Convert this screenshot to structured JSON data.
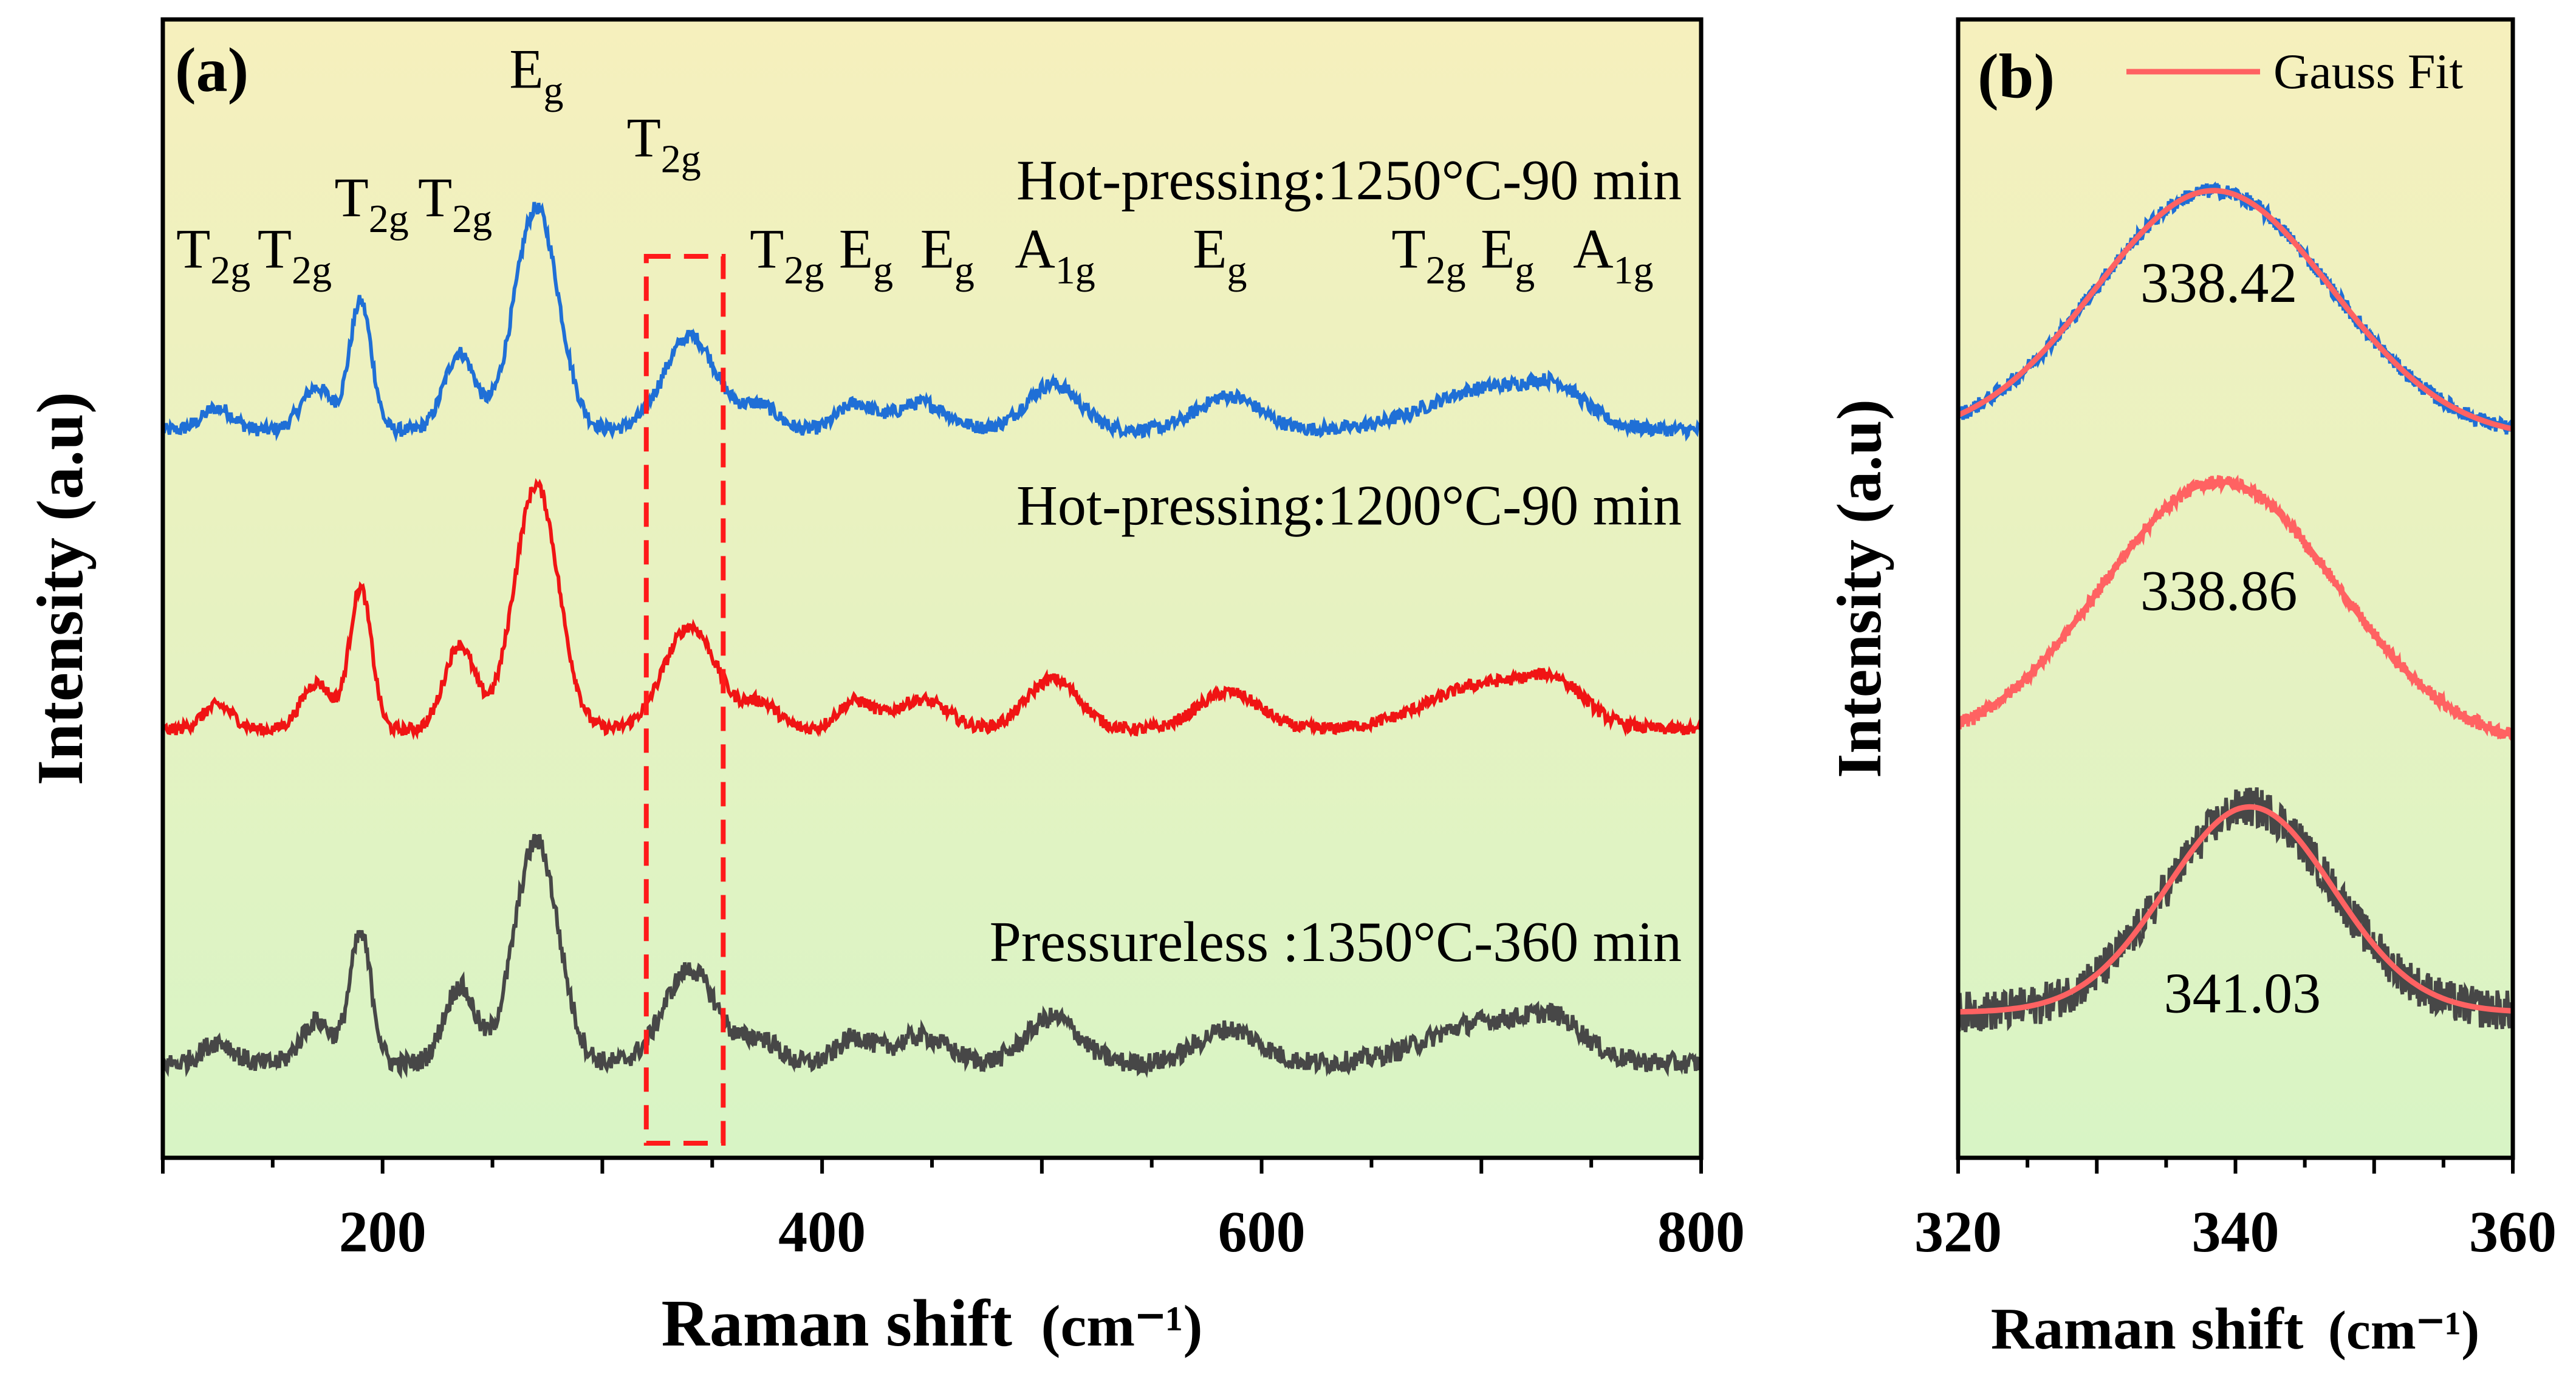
{
  "chart_data": [
    {
      "panel": "a",
      "type": "line",
      "panel_label": "(a)",
      "xlabel": "Raman shift",
      "xlabel_unit": "(cm⁻¹)",
      "ylabel": "Intensity (a.u)",
      "xlim": [
        100,
        800
      ],
      "xticks": [
        200,
        400,
        600,
        800
      ],
      "y_ticks_shown": false,
      "background_gradient": [
        "#f6f0bd",
        "#d8f4c5"
      ],
      "series": [
        {
          "name": "Hot-pressing:1250°C-90 min",
          "color": "#1f6fd6",
          "offset": 3.7,
          "noise": 0.04,
          "peak_scale": 1.0
        },
        {
          "name": "Hot-pressing:1200°C-90 min",
          "color": "#f01414",
          "offset": 1.95,
          "noise": 0.035,
          "peak_scale": 1.1
        },
        {
          "name": "Pressureless :1350°C-360 min",
          "color": "#474747",
          "offset": 0.0,
          "noise": 0.06,
          "peak_scale": 1.0
        }
      ],
      "peaks": [
        {
          "x": 125,
          "height": 0.13,
          "width": 7
        },
        {
          "x": 170,
          "height": 0.25,
          "width": 7
        },
        {
          "x": 190,
          "height": 0.75,
          "width": 5
        },
        {
          "x": 235,
          "height": 0.45,
          "width": 7
        },
        {
          "x": 270,
          "height": 1.3,
          "width": 10
        },
        {
          "x": 340,
          "height": 0.55,
          "width": 12
        },
        {
          "x": 372,
          "height": 0.14,
          "width": 8
        },
        {
          "x": 415,
          "height": 0.15,
          "width": 8
        },
        {
          "x": 445,
          "height": 0.16,
          "width": 12
        },
        {
          "x": 505,
          "height": 0.27,
          "width": 12
        },
        {
          "x": 585,
          "height": 0.2,
          "width": 14
        },
        {
          "x": 705,
          "height": 0.25,
          "width": 28
        },
        {
          "x": 735,
          "height": 0.14,
          "width": 12
        }
      ],
      "mode_labels": [
        {
          "base": "T",
          "sub": "2g",
          "x": 123,
          "y": 4.65
        },
        {
          "base": "T",
          "sub": "2g",
          "x": 160,
          "y": 4.65
        },
        {
          "base": "T",
          "sub": "2g",
          "x": 195,
          "y": 4.95
        },
        {
          "base": "T",
          "sub": "2g",
          "x": 233,
          "y": 4.95
        },
        {
          "base": "E",
          "sub": "g",
          "x": 270,
          "y": 5.7
        },
        {
          "base": "T",
          "sub": "2g",
          "x": 328,
          "y": 5.3
        },
        {
          "base": "T",
          "sub": "2g",
          "x": 384,
          "y": 4.65
        },
        {
          "base": "E",
          "sub": "g",
          "x": 420,
          "y": 4.65
        },
        {
          "base": "E",
          "sub": "g",
          "x": 457,
          "y": 4.65
        },
        {
          "base": "A",
          "sub": "1g",
          "x": 506,
          "y": 4.65
        },
        {
          "base": "E",
          "sub": "g",
          "x": 581,
          "y": 4.65
        },
        {
          "base": "T",
          "sub": "2g",
          "x": 676,
          "y": 4.65
        },
        {
          "base": "E",
          "sub": "g",
          "x": 712,
          "y": 4.65
        },
        {
          "base": "A",
          "sub": "1g",
          "x": 760,
          "y": 4.65
        }
      ],
      "highlight_box": {
        "x_range": [
          320,
          355
        ],
        "color": "#ff1a1a",
        "style": "dashed"
      },
      "series_labels": [
        {
          "text": "Hot-pressing:1250°C-90 min",
          "x": 800,
          "y": 5.05,
          "align": "end"
        },
        {
          "text": "Hot-pressing:1200°C-90 min",
          "x": 800,
          "y": 3.15,
          "align": "end"
        },
        {
          "text": "Pressureless :1350°C-360 min",
          "x": 800,
          "y": 0.6,
          "align": "end"
        }
      ]
    },
    {
      "panel": "b",
      "type": "line",
      "panel_label": "(b)",
      "xlabel": "Raman shift",
      "xlabel_unit": "(cm⁻¹)",
      "ylabel": "Intensity (a.u)",
      "xlim": [
        320,
        360
      ],
      "xticks": [
        320,
        340,
        360
      ],
      "y_ticks_shown": false,
      "legend": {
        "label": "Gauss Fit",
        "color": "#ff6262",
        "position": "top-right"
      },
      "series": [
        {
          "name": "Hot-pressing:1250°C-90 min",
          "color": "#1f6fd6",
          "center": 338.42,
          "sigma": 8.5,
          "amplitude": 1.45,
          "baseline": 3.65,
          "noise": 0.045
        },
        {
          "name": "Hot-pressing:1200°C-90 min",
          "color": "#ff6262",
          "center": 338.86,
          "sigma": 8.5,
          "amplitude": 1.55,
          "baseline": 1.85,
          "noise": 0.04
        },
        {
          "name": "Pressureless :1350°C-360 min",
          "color": "#474747",
          "center": 341.03,
          "sigma": 6.0,
          "amplitude": 1.2,
          "baseline": 0.3,
          "noise": 0.12
        }
      ],
      "fit_color": "#ff6262",
      "peak_labels": [
        {
          "text": "338.42",
          "x": 338.8,
          "y": 4.45
        },
        {
          "text": "338.86",
          "x": 338.8,
          "y": 2.65
        },
        {
          "text": "341.03",
          "x": 340.5,
          "y": 0.3
        }
      ]
    }
  ]
}
